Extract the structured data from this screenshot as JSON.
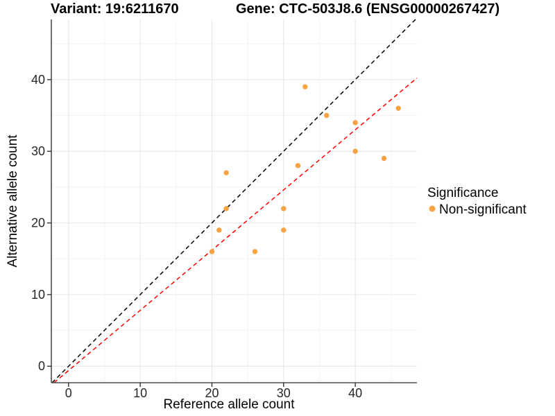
{
  "chart_data": {
    "type": "scatter",
    "titles": {
      "variant": "Variant: 19:6211670",
      "gene": "Gene: CTC-503J8.6 (ENSG00000267427)"
    },
    "xlabel": "Reference allele count",
    "ylabel": "Alternative allele count",
    "xlim": [
      -2.4,
      48.6
    ],
    "ylim": [
      -2.3,
      48.4
    ],
    "x_major_ticks": [
      0,
      10,
      20,
      30,
      40
    ],
    "y_major_ticks": [
      0,
      10,
      20,
      30,
      40
    ],
    "x_minor_ticks": [
      5,
      15,
      25,
      35,
      45
    ],
    "y_minor_ticks": [
      5,
      15,
      25,
      35,
      45
    ],
    "grid": true,
    "legend": {
      "title": "Significance",
      "position": "right",
      "items": [
        {
          "label": "Non-significant",
          "color": "#F9A242"
        }
      ]
    },
    "series": [
      {
        "name": "Non-significant",
        "color": "#F9A242",
        "marker": "circle",
        "points": [
          [
            20,
            16
          ],
          [
            21,
            19
          ],
          [
            22,
            22
          ],
          [
            22,
            27
          ],
          [
            26,
            16
          ],
          [
            30,
            19
          ],
          [
            30,
            22
          ],
          [
            32,
            28
          ],
          [
            33,
            39
          ],
          [
            36,
            35
          ],
          [
            40,
            30
          ],
          [
            40,
            34
          ],
          [
            44,
            29
          ],
          [
            46,
            36
          ]
        ]
      }
    ],
    "reference_lines": [
      {
        "name": "identity-line",
        "slope": 1,
        "intercept": 0,
        "color": "#000000",
        "dash": true
      },
      {
        "name": "fit-line",
        "slope": 0.84,
        "intercept": -0.6,
        "color": "#FF0000",
        "dash": true
      }
    ]
  },
  "colors": {
    "background": "#FFFFFF",
    "grid_major": "#E6E6E6",
    "grid_minor": "#F2F2F2",
    "axis_line": "#4D4D4D",
    "tick_mark": "#333333",
    "point": "#F9A242"
  }
}
